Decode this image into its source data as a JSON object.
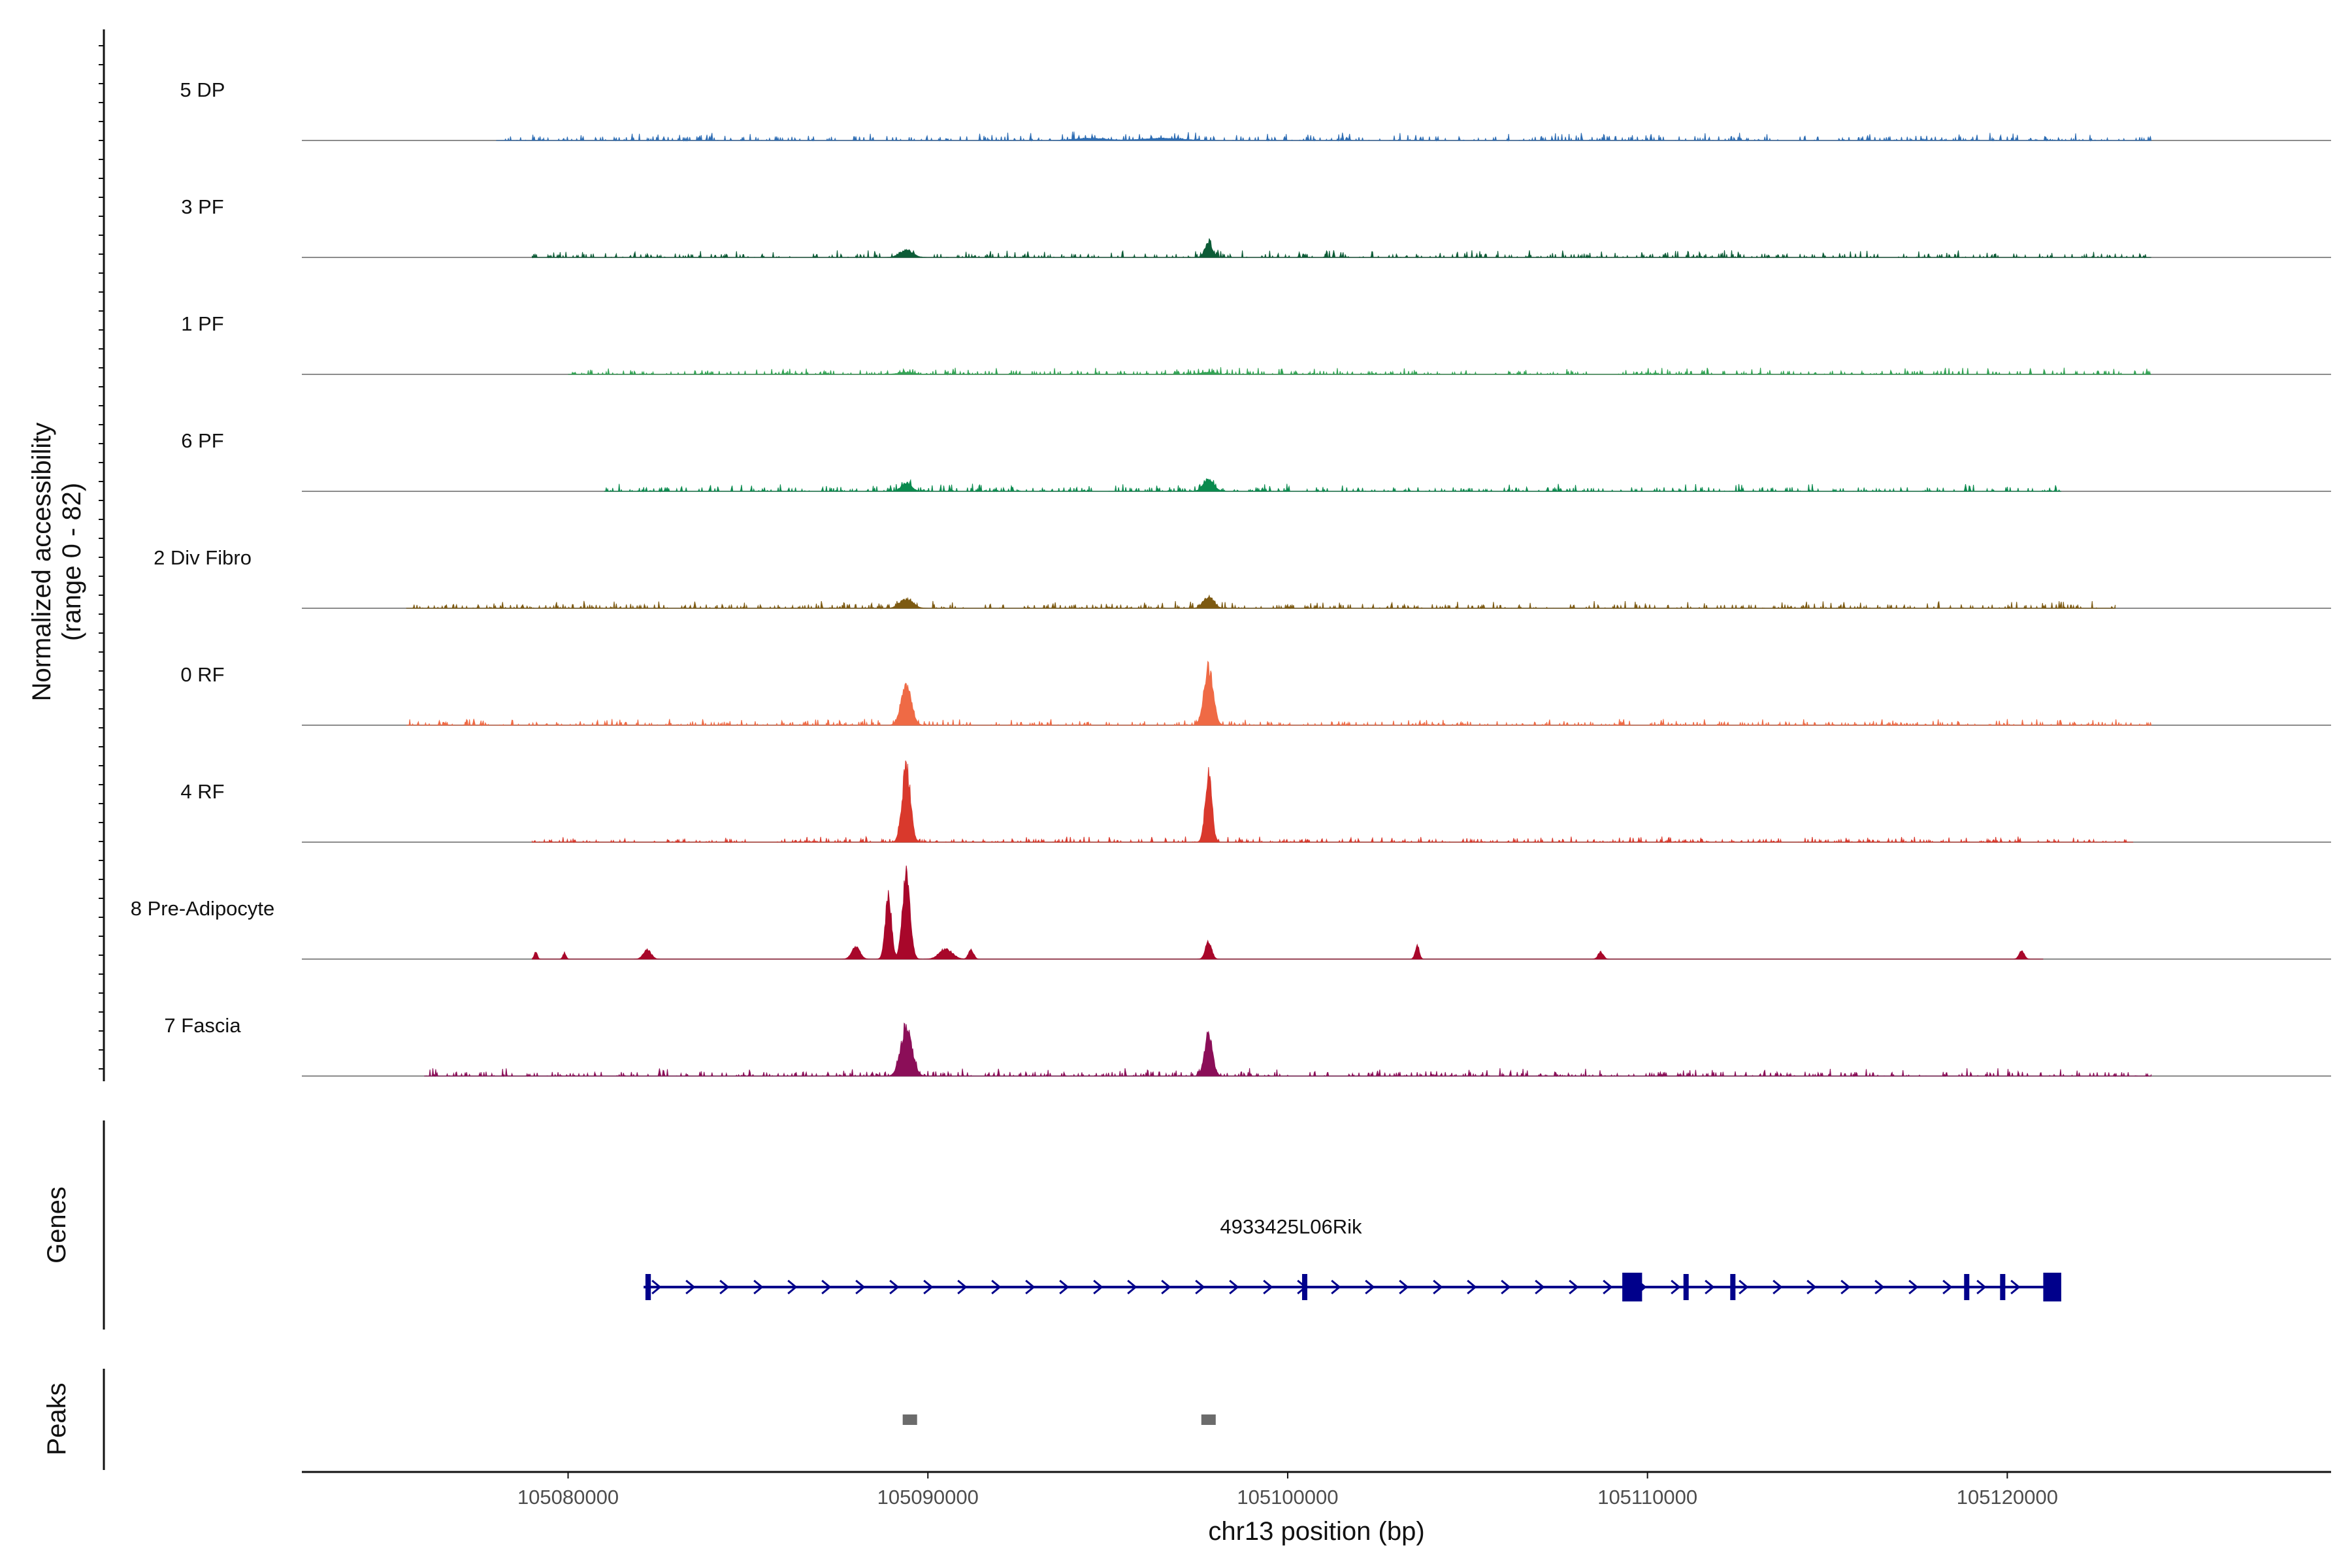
{
  "chart_data": {
    "type": "area",
    "title": "",
    "region": "chr13",
    "xlabel": "chr13 position (bp)",
    "ylabel": "Normalized accessibility",
    "ylabel_range": "(range 0 - 82)",
    "xlim": [
      105072600,
      105129000
    ],
    "ylim": [
      0,
      82
    ],
    "x_ticks": [
      105080000,
      105090000,
      105100000,
      105110000,
      105120000
    ],
    "x_tick_labels": [
      "105080000",
      "105090000",
      "105100000",
      "105110000",
      "105120000"
    ],
    "tracks": [
      {
        "name": "5 DP",
        "color": "#2e6db3",
        "noise": 3.5,
        "peaks": [
          [
            105094500,
            600,
            2
          ],
          [
            105096500,
            800,
            2
          ]
        ],
        "span": [
          105078000,
          105124000
        ]
      },
      {
        "name": "3 PF",
        "color": "#0d5c37",
        "noise": 3.2,
        "peaks": [
          [
            105089400,
            250,
            7
          ],
          [
            105097800,
            150,
            13
          ]
        ],
        "span": [
          105079000,
          105124000
        ]
      },
      {
        "name": "1 PF",
        "color": "#33a354",
        "noise": 3.0,
        "peaks": [
          [
            105089400,
            300,
            2
          ],
          [
            105097800,
            300,
            2
          ]
        ],
        "span": [
          105080000,
          105124000
        ]
      },
      {
        "name": "6 PF",
        "color": "#0a8a4e",
        "noise": 3.4,
        "peaks": [
          [
            105089400,
            200,
            8
          ],
          [
            105097800,
            200,
            12
          ]
        ],
        "span": [
          105081000,
          105121500
        ]
      },
      {
        "name": "2 Div Fibro",
        "color": "#7d5a12",
        "noise": 3.3,
        "peaks": [
          [
            105089400,
            250,
            9
          ],
          [
            105097800,
            200,
            11
          ]
        ],
        "span": [
          105075500,
          105123000
        ]
      },
      {
        "name": "0 RF",
        "color": "#ef6a45",
        "noise": 2.8,
        "peaks": [
          [
            105089400,
            200,
            37
          ],
          [
            105097800,
            180,
            55
          ]
        ],
        "span": [
          105075500,
          105124000
        ]
      },
      {
        "name": "4 RF",
        "color": "#d9392c",
        "noise": 2.5,
        "peaks": [
          [
            105089400,
            160,
            72
          ],
          [
            105097800,
            130,
            65
          ]
        ],
        "span": [
          105079000,
          105123500
        ]
      },
      {
        "name": "8 Pre-Adipocyte",
        "color": "#a8072a",
        "noise": 0.0,
        "peaks": [
          [
            105088900,
            120,
            62
          ],
          [
            105089400,
            150,
            80
          ],
          [
            105088000,
            160,
            12
          ],
          [
            105090500,
            250,
            10
          ],
          [
            105091200,
            100,
            9
          ],
          [
            105097800,
            120,
            17
          ],
          [
            105103600,
            80,
            13
          ],
          [
            105108700,
            100,
            7
          ],
          [
            105079100,
            60,
            7
          ],
          [
            105079900,
            60,
            6
          ],
          [
            105082200,
            150,
            9
          ],
          [
            105120400,
            100,
            8
          ]
        ],
        "span": [
          105079000,
          105121000
        ]
      },
      {
        "name": "7 Fascia",
        "color": "#8b0e58",
        "noise": 3.6,
        "peaks": [
          [
            105089400,
            220,
            46
          ],
          [
            105097800,
            160,
            38
          ]
        ],
        "span": [
          105076000,
          105124000
        ]
      }
    ],
    "genes": [
      {
        "name": "4933425L06Rik",
        "strand": "+",
        "start": 105082100,
        "end": 105121400,
        "exons": [
          [
            105082150,
            105082300
          ],
          [
            105100400,
            105100500
          ],
          [
            105109300,
            105109850
          ],
          [
            105111000,
            105111100
          ],
          [
            105112300,
            105112400
          ],
          [
            105118800,
            105118900
          ],
          [
            105119800,
            105119900
          ],
          [
            105121000,
            105121500
          ]
        ]
      }
    ],
    "peaks": [
      [
        105089300,
        105089700
      ],
      [
        105097600,
        105098000
      ]
    ],
    "panel_titles": {
      "genes": "Genes",
      "peaks": "Peaks"
    }
  }
}
